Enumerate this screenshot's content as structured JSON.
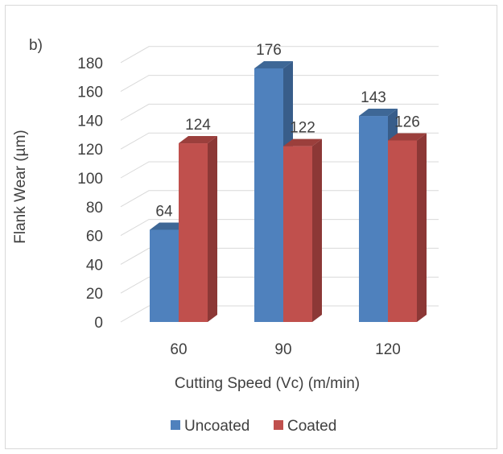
{
  "chart_data": {
    "type": "bar",
    "panel_label": "b)",
    "categories": [
      "60",
      "90",
      "120"
    ],
    "series": [
      {
        "name": "Uncoated",
        "values": [
          64,
          176,
          143
        ],
        "color": "#4f81bd",
        "side_color": "#385d8a",
        "top_color": "#3e6796"
      },
      {
        "name": "Coated",
        "values": [
          124,
          122,
          126
        ],
        "color": "#c0504d",
        "side_color": "#8c3836",
        "top_color": "#9b3f3c"
      }
    ],
    "xlabel": "Cutting Speed (Vc) (m/min)",
    "ylabel": "Flank Wear (µm)",
    "ylim": [
      0,
      180
    ],
    "yticks": [
      0,
      20,
      40,
      60,
      80,
      100,
      120,
      140,
      160,
      180
    ],
    "grid": true,
    "legend_position": "bottom",
    "data_labels": true,
    "style": "3d-clustered-column"
  }
}
